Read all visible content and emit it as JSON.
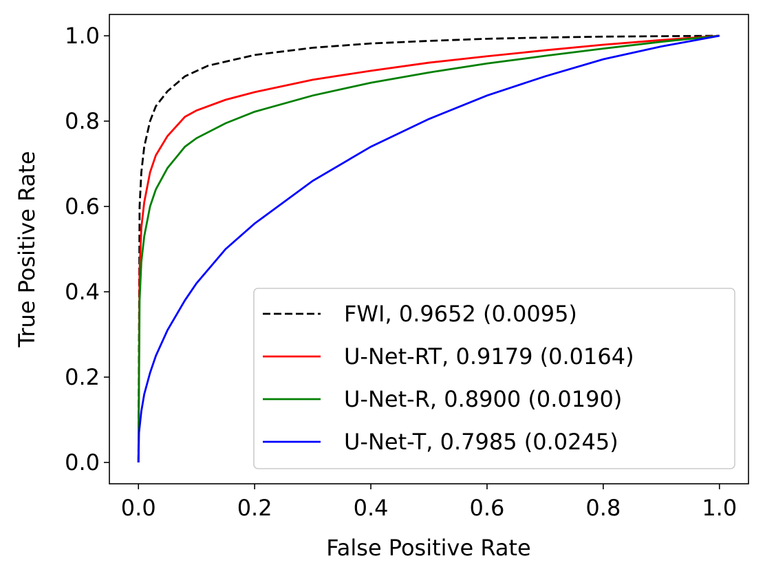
{
  "chart_data": {
    "type": "line",
    "title": "",
    "xlabel": "False Positive Rate",
    "ylabel": "True Positive Rate",
    "xlim": [
      -0.05,
      1.05
    ],
    "ylim": [
      -0.05,
      1.05
    ],
    "xticks": [
      "0.0",
      "0.2",
      "0.4",
      "0.6",
      "0.8",
      "1.0"
    ],
    "yticks": [
      "0.0",
      "0.2",
      "0.4",
      "0.6",
      "0.8",
      "1.0"
    ],
    "grid": false,
    "legend_position": "lower-right",
    "series": [
      {
        "name": "FWI, 0.9652 (0.0095)",
        "color": "#000000",
        "dash": "dashed",
        "x": [
          0,
          0.002,
          0.005,
          0.01,
          0.02,
          0.03,
          0.05,
          0.08,
          0.12,
          0.2,
          0.3,
          0.4,
          0.5,
          0.6,
          0.7,
          0.8,
          0.9,
          1.0
        ],
        "y": [
          0,
          0.6,
          0.68,
          0.74,
          0.8,
          0.835,
          0.87,
          0.905,
          0.93,
          0.955,
          0.972,
          0.982,
          0.988,
          0.993,
          0.996,
          0.998,
          0.999,
          1.0
        ]
      },
      {
        "name": "U-Net-RT, 0.9179 (0.0164)",
        "color": "#ff0000",
        "dash": "solid",
        "x": [
          0,
          0.002,
          0.005,
          0.01,
          0.02,
          0.03,
          0.05,
          0.08,
          0.1,
          0.15,
          0.2,
          0.3,
          0.4,
          0.5,
          0.6,
          0.7,
          0.8,
          0.9,
          1.0
        ],
        "y": [
          0,
          0.45,
          0.55,
          0.61,
          0.68,
          0.72,
          0.765,
          0.81,
          0.825,
          0.85,
          0.868,
          0.897,
          0.918,
          0.937,
          0.952,
          0.966,
          0.979,
          0.99,
          1.0
        ]
      },
      {
        "name": "U-Net-R, 0.8900 (0.0190)",
        "color": "#008000",
        "dash": "solid",
        "x": [
          0,
          0.002,
          0.005,
          0.01,
          0.02,
          0.03,
          0.05,
          0.08,
          0.1,
          0.15,
          0.2,
          0.3,
          0.4,
          0.5,
          0.6,
          0.7,
          0.8,
          0.9,
          1.0
        ],
        "y": [
          0,
          0.38,
          0.47,
          0.53,
          0.6,
          0.64,
          0.69,
          0.74,
          0.76,
          0.795,
          0.822,
          0.86,
          0.89,
          0.914,
          0.935,
          0.953,
          0.97,
          0.986,
          1.0
        ]
      },
      {
        "name": "U-Net-T, 0.7985 (0.0245)",
        "color": "#0000ff",
        "dash": "solid",
        "x": [
          0,
          0.001,
          0.005,
          0.01,
          0.02,
          0.03,
          0.05,
          0.08,
          0.1,
          0.15,
          0.2,
          0.3,
          0.4,
          0.5,
          0.6,
          0.7,
          0.8,
          0.9,
          1.0
        ],
        "y": [
          0,
          0.07,
          0.12,
          0.16,
          0.21,
          0.25,
          0.31,
          0.38,
          0.42,
          0.5,
          0.56,
          0.66,
          0.74,
          0.805,
          0.86,
          0.905,
          0.945,
          0.975,
          1.0
        ]
      }
    ]
  }
}
